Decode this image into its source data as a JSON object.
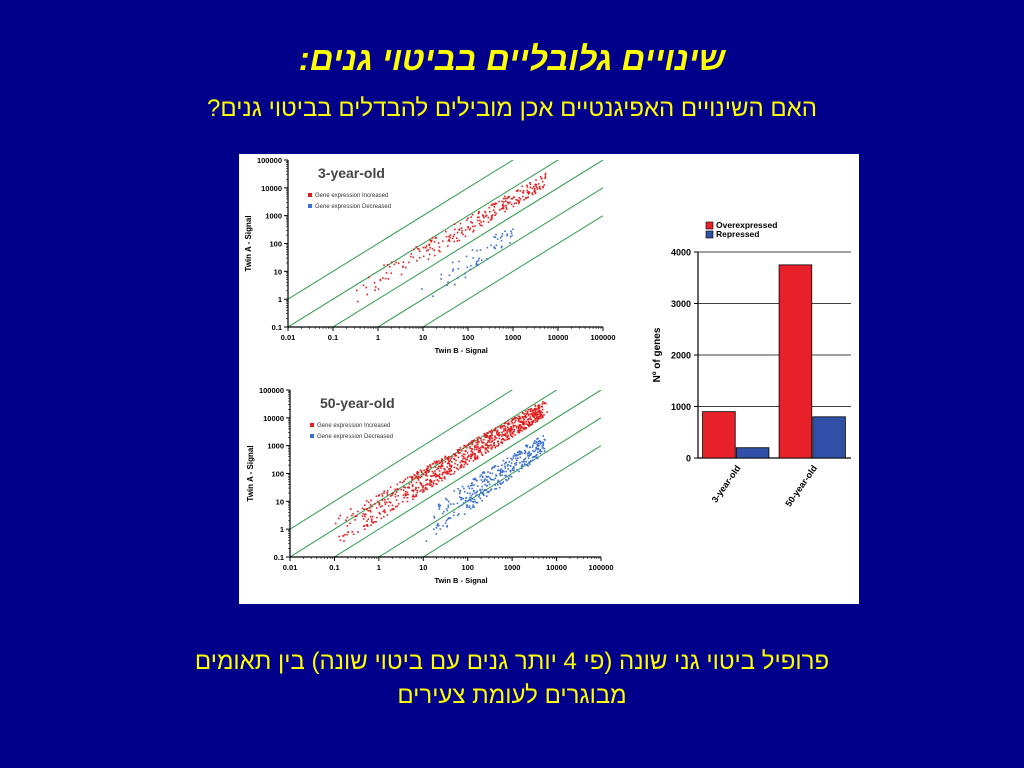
{
  "slide": {
    "title": "שינויים גלובליים בביטוי גנים:",
    "subtitle": "האם השינויים האפיגנטיים אכן מובילים להבדלים בביטוי גנים?",
    "caption_line1": "פרופיל ביטוי גני שונה (פי 4 יותר גנים עם ביטוי שונה) בין תאומים",
    "caption_line2": "מבוגרים לעומת צעירים"
  },
  "colors": {
    "background": "#00008b",
    "text": "#ffff00",
    "increased": "#e02020",
    "decreased": "#3a6fd0",
    "diagonal": "#2e9a4a",
    "bar_over": "#e8202a",
    "bar_rep": "#3050a8"
  },
  "chart_data": [
    {
      "type": "scatter",
      "title": "3-year-old",
      "xlabel": "Twin B - Signal",
      "ylabel": "Twin A - Signal",
      "scale": "log",
      "x_ticks": [
        "0.01",
        "0.1",
        "1",
        "10",
        "100",
        "1000",
        "10000",
        "100000"
      ],
      "y_ticks": [
        "0.1",
        "1",
        "10",
        "100",
        "1000",
        "10000",
        "100000"
      ],
      "xlim": [
        0.01,
        100000
      ],
      "ylim": [
        0.1,
        100000
      ],
      "legend": [
        "Gene expression Increased",
        "Gene expression Decreased"
      ],
      "increased_cloud": {
        "x_range": [
          0.3,
          5000
        ],
        "y_offset_log10": [
          0.3,
          1.2
        ],
        "density": "low"
      },
      "decreased_cloud": {
        "x_range": [
          10,
          1000
        ],
        "y_offset_log10": [
          -0.3,
          -1.4
        ],
        "density": "low"
      },
      "diagonal_lines_fold": [
        0.01,
        0.1,
        1,
        10,
        100
      ]
    },
    {
      "type": "scatter",
      "title": "50-year-old",
      "xlabel": "Twin B - Signal",
      "ylabel": "Twin A - Signal",
      "scale": "log",
      "x_ticks": [
        "0.01",
        "0.1",
        "1",
        "10",
        "100",
        "1000",
        "10000",
        "100000"
      ],
      "y_ticks": [
        "0.1",
        "1",
        "10",
        "100",
        "1000",
        "10000",
        "100000"
      ],
      "xlim": [
        0.01,
        100000
      ],
      "ylim": [
        0.1,
        100000
      ],
      "legend": [
        "Gene expression Increased",
        "Gene expression Decreased"
      ],
      "increased_cloud": {
        "x_range": [
          0.1,
          5000
        ],
        "y_offset_log10": [
          0.3,
          1.4
        ],
        "density": "high"
      },
      "decreased_cloud": {
        "x_range": [
          10,
          5000
        ],
        "y_offset_log10": [
          -0.3,
          -1.6
        ],
        "density": "high"
      },
      "diagonal_lines_fold": [
        0.01,
        0.1,
        1,
        10,
        100
      ]
    },
    {
      "type": "bar",
      "title": "",
      "xlabel": "",
      "ylabel": "Nº of genes",
      "categories": [
        "3-year-old",
        "50-year-old"
      ],
      "series": [
        {
          "name": "Overexpressed",
          "values": [
            900,
            3750
          ]
        },
        {
          "name": "Repressed",
          "values": [
            200,
            800
          ]
        }
      ],
      "ylim": [
        0,
        4000
      ],
      "y_ticks": [
        "0",
        "1000",
        "2000",
        "3000",
        "4000"
      ],
      "legend_position": "top"
    }
  ]
}
